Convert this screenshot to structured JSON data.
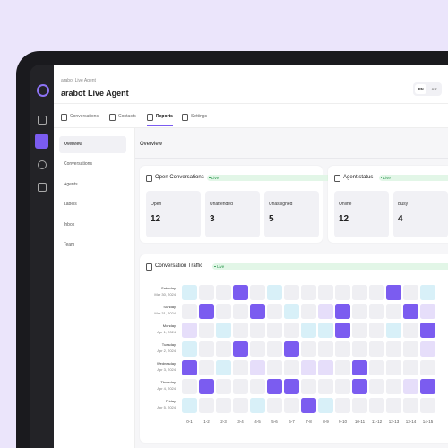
{
  "header": {
    "subtitle": "arabot Live Agent",
    "title": "arabot Live Agent",
    "languages": [
      "EN",
      "AR"
    ]
  },
  "tabs": [
    "Conversations",
    "Contacts",
    "Reports",
    "Settings"
  ],
  "active_tab": 2,
  "sidebar": [
    "Overview",
    "Conversations",
    "Agents",
    "Labels",
    "Inbox",
    "Team"
  ],
  "active_sidebar": 0,
  "section_title": "Overview",
  "open_conversations": {
    "title": "Open Conversations",
    "badge": "Live",
    "stats": [
      {
        "label": "Open",
        "value": 12
      },
      {
        "label": "Unattended",
        "value": 3
      },
      {
        "label": "Unassigned",
        "value": 5
      }
    ]
  },
  "agent_status": {
    "title": "Agent status",
    "badge": "Live",
    "stats": [
      {
        "label": "Online",
        "value": 12
      },
      {
        "label": "Busy",
        "value": 4
      }
    ]
  },
  "traffic": {
    "title": "Conversation Traffic",
    "badge": "Live",
    "rows": [
      {
        "day": "Saturday",
        "date": "Mar 30, 2024"
      },
      {
        "day": "Sunday",
        "date": "Mar 31, 2024"
      },
      {
        "day": "Monday",
        "date": "Apr 1, 2024"
      },
      {
        "day": "Tuesday",
        "date": "Apr 2, 2024"
      },
      {
        "day": "Wednesday",
        "date": "Apr 3, 2024"
      },
      {
        "day": "Thursday",
        "date": "Apr 4, 2024"
      },
      {
        "day": "Friday",
        "date": "Apr 5, 2024"
      }
    ],
    "columns": [
      "0-1",
      "1-2",
      "2-3",
      "3-4",
      "4-5",
      "5-6",
      "6-7",
      "7-8",
      "8-9",
      "9-10",
      "10-11",
      "11-12",
      "12-13",
      "13-14",
      "14-15"
    ],
    "levels": [
      [
        1,
        0,
        0,
        4,
        0,
        1,
        0,
        0,
        0,
        0,
        0,
        0,
        4,
        0,
        1
      ],
      [
        0,
        4,
        0,
        0,
        4,
        0,
        1,
        0,
        2,
        4,
        0,
        0,
        0,
        4,
        2
      ],
      [
        2,
        0,
        1,
        0,
        0,
        0,
        0,
        1,
        1,
        4,
        0,
        0,
        1,
        0,
        4
      ],
      [
        1,
        0,
        0,
        4,
        0,
        0,
        4,
        0,
        0,
        0,
        0,
        0,
        0,
        0,
        2
      ],
      [
        4,
        0,
        1,
        0,
        2,
        0,
        0,
        2,
        2,
        0,
        4,
        0,
        0,
        0,
        0
      ],
      [
        0,
        4,
        0,
        0,
        0,
        4,
        4,
        0,
        0,
        0,
        4,
        0,
        0,
        2,
        4
      ],
      [
        1,
        0,
        0,
        0,
        1,
        0,
        0,
        4,
        1,
        0,
        0,
        0,
        0,
        0,
        0
      ]
    ],
    "level_colors": [
      "#efeff3",
      "#d8f0f8",
      "#e6defa",
      "#cdbdf5",
      "#7b5cf0"
    ]
  }
}
